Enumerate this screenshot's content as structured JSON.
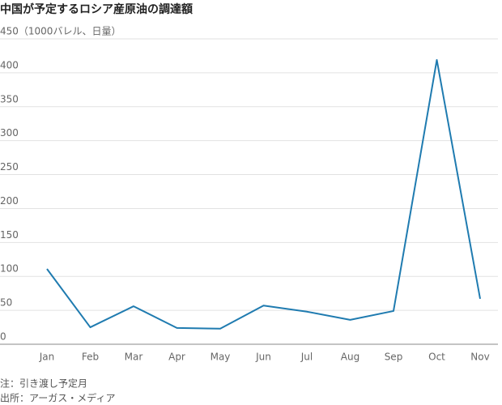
{
  "chart_data": {
    "type": "line",
    "title": "中国が予定するロシア産原油の調達額",
    "categories": [
      "Jan",
      "Feb",
      "Mar",
      "Apr",
      "May",
      "Jun",
      "Jul",
      "Aug",
      "Sep",
      "Oct",
      "Nov"
    ],
    "series": [
      {
        "color": "#1f7bb0",
        "values": [
          111,
          25,
          56,
          24,
          23,
          57,
          48,
          36,
          49,
          419,
          67
        ]
      }
    ],
    "ylim": [
      0,
      450
    ],
    "yticks": [
      0,
      50,
      100,
      150,
      200,
      250,
      300,
      350,
      400,
      {
        "value": 450,
        "label": "450（1000バレル、日量）"
      }
    ],
    "grid": true,
    "notes": [
      "注：引き渡し予定月",
      "出所：アーガス・メディア"
    ]
  }
}
